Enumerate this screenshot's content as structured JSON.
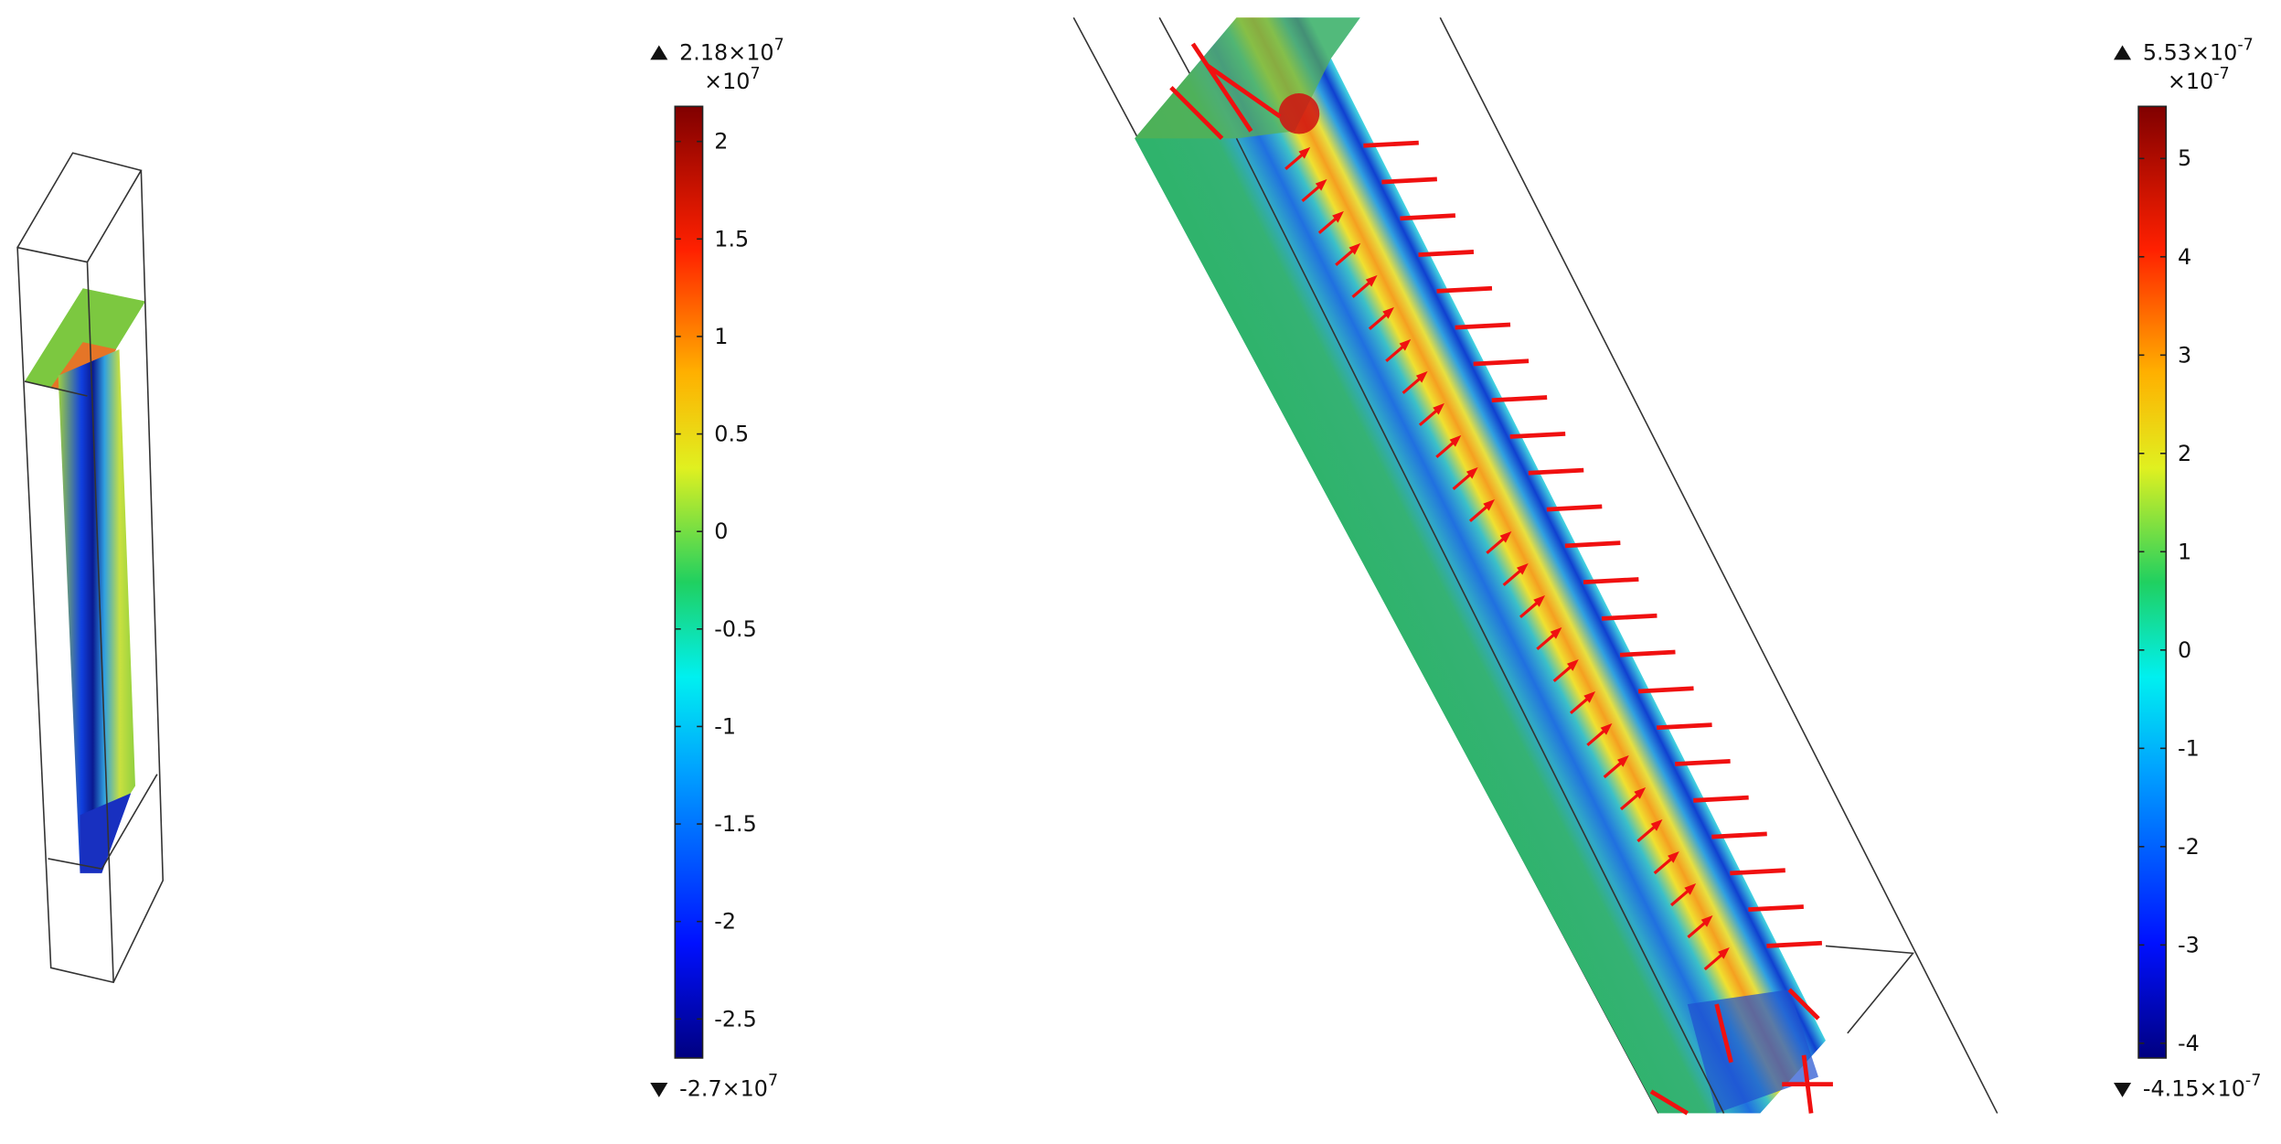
{
  "panels": [
    {
      "colorbar": {
        "max": {
          "value": 2.18,
          "label": "2.18×10",
          "exponent": "7"
        },
        "min": {
          "value": -2.7,
          "label": "-2.7×10",
          "exponent": "7"
        },
        "multiplier": {
          "label": "×10",
          "exponent": "7"
        },
        "ticks": [
          2,
          1.5,
          1,
          0.5,
          0,
          -0.5,
          -1,
          -1.5,
          -2,
          -2.5
        ]
      }
    },
    {
      "colorbar": {
        "max": {
          "value": 5.53,
          "label": "5.53×10",
          "exponent": "-7"
        },
        "min": {
          "value": -4.15,
          "label": "-4.15×10",
          "exponent": "-7"
        },
        "multiplier": {
          "label": "×10",
          "exponent": "-7"
        },
        "ticks": [
          5,
          4,
          3,
          2,
          1,
          0,
          -1,
          -2,
          -3,
          -4
        ]
      }
    }
  ]
}
